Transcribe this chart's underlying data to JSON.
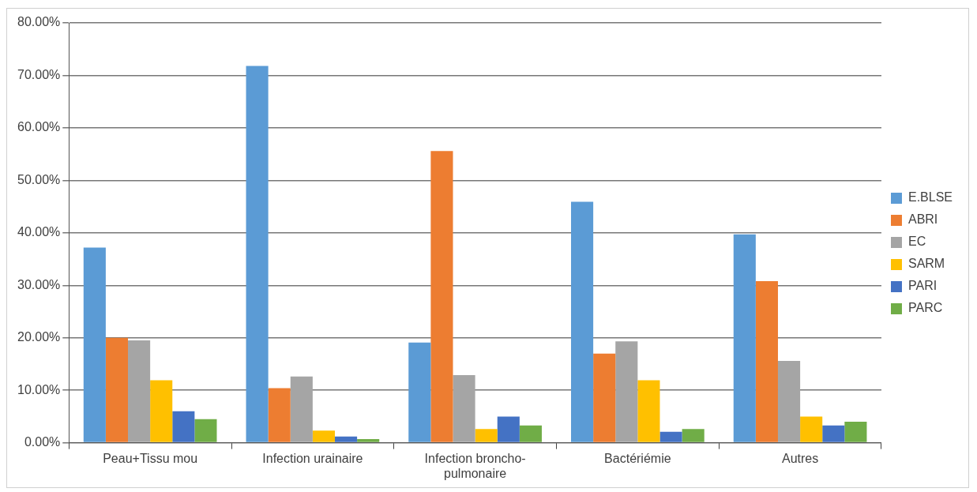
{
  "chart_data": {
    "type": "bar",
    "categories": [
      "Peau+Tissu mou",
      "Infection urainaire",
      "Infection broncho-pulmonaire",
      "Bactériémie",
      "Autres"
    ],
    "series": [
      {
        "name": "E.BLSE",
        "color": "#5b9bd5",
        "values": [
          37.2,
          71.8,
          19.1,
          45.9,
          39.7
        ]
      },
      {
        "name": "ABRI",
        "color": "#ed7d31",
        "values": [
          20.0,
          10.4,
          55.6,
          17.0,
          30.8
        ]
      },
      {
        "name": "EC",
        "color": "#a5a5a5",
        "values": [
          19.5,
          12.6,
          12.9,
          19.3,
          15.6
        ]
      },
      {
        "name": "SARM",
        "color": "#ffc000",
        "values": [
          11.9,
          2.3,
          2.6,
          11.9,
          5.0
        ]
      },
      {
        "name": "PARI",
        "color": "#4472c4",
        "values": [
          6.0,
          1.2,
          5.0,
          2.1,
          3.3
        ]
      },
      {
        "name": "PARC",
        "color": "#70ad47",
        "values": [
          4.5,
          0.7,
          3.3,
          2.6,
          4.0
        ]
      }
    ],
    "ylim": [
      0,
      80
    ],
    "yticks": [
      {
        "value": 0,
        "label": "0.00%"
      },
      {
        "value": 10,
        "label": "10.00%"
      },
      {
        "value": 20,
        "label": "20.00%"
      },
      {
        "value": 30,
        "label": "30.00%"
      },
      {
        "value": 40,
        "label": "40.00%"
      },
      {
        "value": 50,
        "label": "50.00%"
      },
      {
        "value": 60,
        "label": "60.00%"
      },
      {
        "value": 70,
        "label": "70.00%"
      },
      {
        "value": 80,
        "label": "80.00%"
      }
    ],
    "grid": "y",
    "legend": "right"
  }
}
